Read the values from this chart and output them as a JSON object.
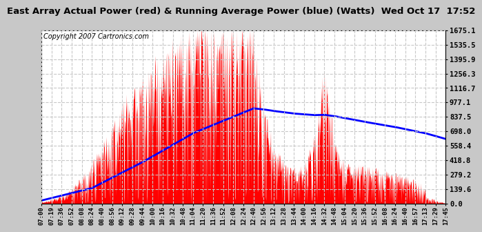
{
  "title": "East Array Actual Power (red) & Running Average Power (blue) (Watts)  Wed Oct 17  17:52",
  "copyright": "Copyright 2007 Cartronics.com",
  "yticks": [
    0.0,
    139.6,
    279.2,
    418.8,
    558.4,
    698.0,
    837.5,
    977.1,
    1116.7,
    1256.3,
    1395.9,
    1535.5,
    1675.1
  ],
  "ymax": 1675.1,
  "xtick_labels": [
    "07:00",
    "07:19",
    "07:36",
    "07:52",
    "08:08",
    "08:24",
    "08:40",
    "08:56",
    "09:12",
    "09:28",
    "09:44",
    "10:00",
    "10:16",
    "10:32",
    "10:48",
    "11:04",
    "11:20",
    "11:36",
    "11:52",
    "12:08",
    "12:24",
    "12:40",
    "12:56",
    "13:12",
    "13:28",
    "13:44",
    "14:00",
    "14:16",
    "14:32",
    "14:48",
    "15:04",
    "15:20",
    "15:36",
    "15:52",
    "16:08",
    "16:24",
    "16:40",
    "16:57",
    "17:13",
    "17:29",
    "17:45"
  ],
  "bg_color": "#c8c8c8",
  "plot_bg_color": "#ffffff",
  "title_color": "#000000",
  "bar_color": "#ff0000",
  "line_color": "#0000ff",
  "grid_color": "#c8c8c8",
  "title_fontsize": 10,
  "copyright_fontsize": 7,
  "n_ticks": 41
}
